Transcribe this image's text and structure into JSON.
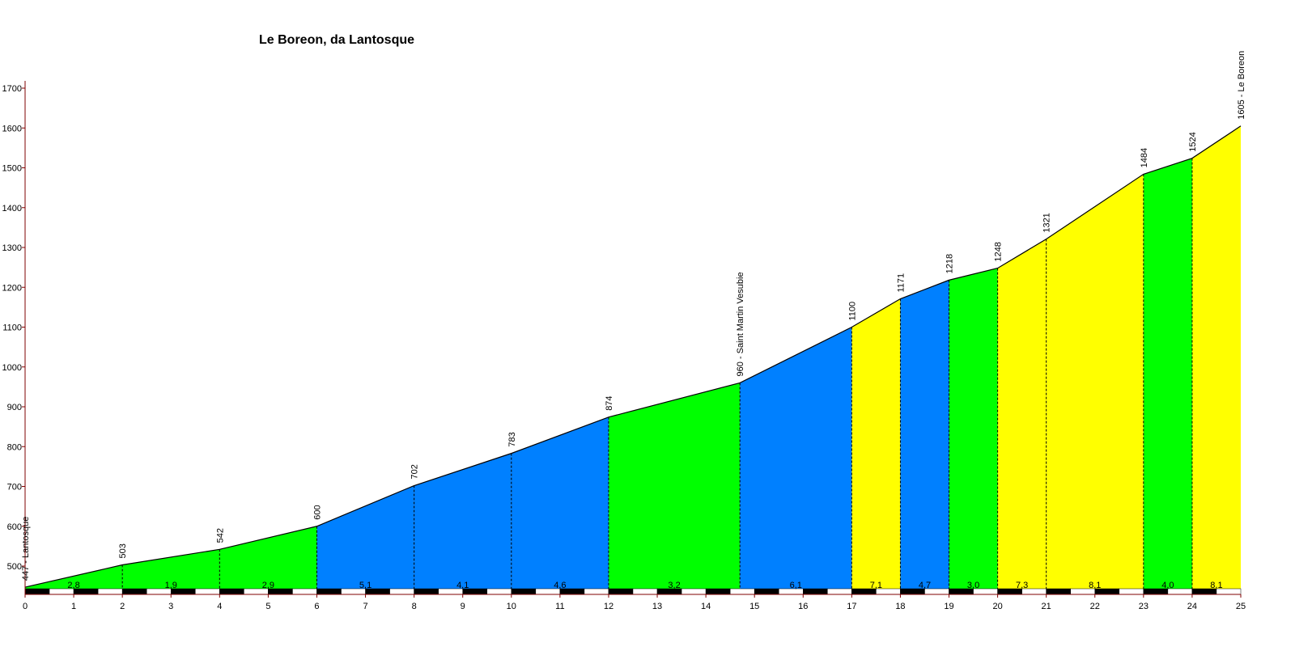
{
  "chart_data": {
    "type": "area",
    "title": "Le Boreon, da Lantosque",
    "xlabel": "",
    "ylabel": "",
    "xlim": [
      0,
      25
    ],
    "ylim": [
      420,
      1700
    ],
    "x_ticks": [
      0,
      1,
      2,
      3,
      4,
      5,
      6,
      7,
      8,
      9,
      10,
      11,
      12,
      13,
      14,
      15,
      16,
      17,
      18,
      19,
      20,
      21,
      22,
      23,
      24,
      25
    ],
    "y_ticks": [
      500,
      600,
      700,
      800,
      900,
      1000,
      1100,
      1200,
      1300,
      1400,
      1500,
      1600,
      1700
    ],
    "points": [
      {
        "x": 0,
        "y": 447,
        "label": "447 - Lantosque"
      },
      {
        "x": 2,
        "y": 503,
        "label": "503"
      },
      {
        "x": 4,
        "y": 542,
        "label": "542"
      },
      {
        "x": 6,
        "y": 600,
        "label": "600"
      },
      {
        "x": 8,
        "y": 702,
        "label": "702"
      },
      {
        "x": 10,
        "y": 783,
        "label": "783"
      },
      {
        "x": 12,
        "y": 874,
        "label": "874"
      },
      {
        "x": 14.7,
        "y": 960,
        "label": "960 - Saint Martin Vesubie"
      },
      {
        "x": 17,
        "y": 1100,
        "label": "1100"
      },
      {
        "x": 18,
        "y": 1171,
        "label": "1171"
      },
      {
        "x": 19,
        "y": 1218,
        "label": "1218"
      },
      {
        "x": 20,
        "y": 1248,
        "label": "1248"
      },
      {
        "x": 21,
        "y": 1321,
        "label": "1321"
      },
      {
        "x": 23,
        "y": 1484,
        "label": "1484"
      },
      {
        "x": 24,
        "y": 1524,
        "label": "1524"
      },
      {
        "x": 25,
        "y": 1605,
        "label": "1605 - Le Boreon"
      }
    ],
    "segments": [
      {
        "from": 0,
        "to": 2,
        "gradient": "2,8",
        "color": "#00ff00"
      },
      {
        "from": 2,
        "to": 4,
        "gradient": "1,9",
        "color": "#00ff00"
      },
      {
        "from": 4,
        "to": 6,
        "gradient": "2,9",
        "color": "#00ff00"
      },
      {
        "from": 6,
        "to": 8,
        "gradient": "5,1",
        "color": "#0080ff"
      },
      {
        "from": 8,
        "to": 10,
        "gradient": "4,1",
        "color": "#0080ff"
      },
      {
        "from": 10,
        "to": 12,
        "gradient": "4,6",
        "color": "#0080ff"
      },
      {
        "from": 12,
        "to": 14.7,
        "gradient": "3,2",
        "color": "#00ff00"
      },
      {
        "from": 14.7,
        "to": 17,
        "gradient": "6,1",
        "color": "#0080ff"
      },
      {
        "from": 17,
        "to": 18,
        "gradient": "7,1",
        "color": "#ffff00"
      },
      {
        "from": 18,
        "to": 19,
        "gradient": "4,7",
        "color": "#0080ff"
      },
      {
        "from": 19,
        "to": 20,
        "gradient": "3,0",
        "color": "#00ff00"
      },
      {
        "from": 20,
        "to": 21,
        "gradient": "7,3",
        "color": "#ffff00"
      },
      {
        "from": 21,
        "to": 23,
        "gradient": "8,1",
        "color": "#ffff00"
      },
      {
        "from": 23,
        "to": 24,
        "gradient": "4,0",
        "color": "#00ff00"
      },
      {
        "from": 24,
        "to": 25,
        "gradient": "8,1",
        "color": "#ffff00"
      }
    ],
    "grid": false,
    "axis_color": "#7f0000"
  }
}
